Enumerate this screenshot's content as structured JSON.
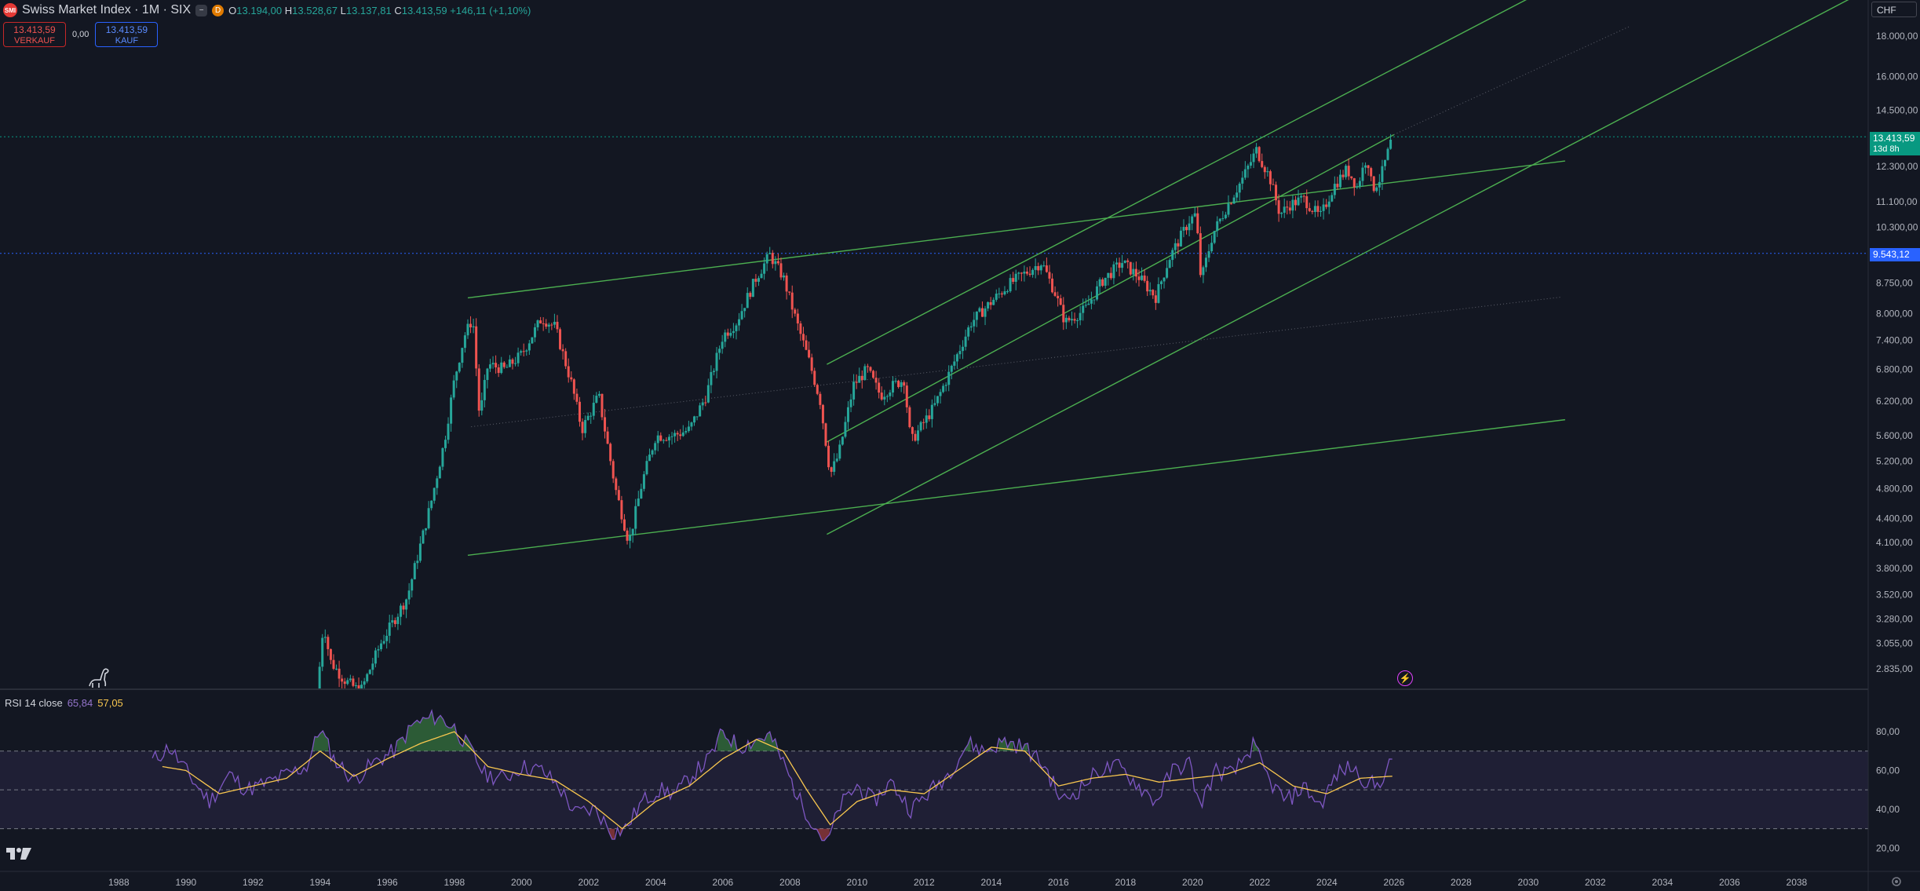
{
  "header": {
    "symbol_title": "Swiss Market Index · 1M · SIX",
    "logo_text": "SMI",
    "flag_minus": "−",
    "flag_d": "D",
    "o_label": "O",
    "o_value": "13.194,00",
    "h_label": "H",
    "h_value": "13.528,67",
    "l_label": "L",
    "l_value": "13.137,81",
    "c_label": "C",
    "c_value": "13.413,59",
    "change": "+146,11 (+1,10%)"
  },
  "trade": {
    "sell_price": "13.413,59",
    "sell_label": "VERKAUF",
    "spread": "0,00",
    "buy_price": "13.413,59",
    "buy_label": "KAUF"
  },
  "currency": "CHF",
  "price_tags": {
    "last_price": "13.413,59",
    "countdown": "13d 8h",
    "level": "9.543,12"
  },
  "rsi": {
    "label": "RSI 14 close",
    "value": "65,84",
    "ma_value": "57,05"
  },
  "colors": {
    "background": "#131722",
    "up": "#26a69a",
    "down": "#ef5350",
    "trendline": "#4caf50",
    "rsi_line": "#7e57c2",
    "rsi_ma": "#f9c74f",
    "level": "#2962ff"
  },
  "icons": [
    "tradingview-logo-icon",
    "dino-icon",
    "lightning-icon",
    "settings-icon"
  ],
  "chart_data": [
    {
      "type": "candlestick",
      "title": "Swiss Market Index · 1M · SIX",
      "scale": "log",
      "x_range": [
        1987.5,
        2040
      ],
      "y_range": [
        2700,
        20600
      ],
      "x_ticks": [
        "1988",
        "1990",
        "1992",
        "1994",
        "1996",
        "1998",
        "2000",
        "2002",
        "2004",
        "2006",
        "2008",
        "2010",
        "2012",
        "2014",
        "2016",
        "2018",
        "2020",
        "2022",
        "2024",
        "2026",
        "2028",
        "2030",
        "2032",
        "2034",
        "2036",
        "2038"
      ],
      "y_ticks": [
        {
          "v": 18000,
          "label": "18.000,00"
        },
        {
          "v": 16000,
          "label": "16.000,00"
        },
        {
          "v": 14500,
          "label": "14.500,00"
        },
        {
          "v": 12300,
          "label": "12.300,00"
        },
        {
          "v": 11100,
          "label": "11.100,00"
        },
        {
          "v": 10300,
          "label": "10.300,00"
        },
        {
          "v": 8750,
          "label": "8.750,00"
        },
        {
          "v": 8000,
          "label": "8.000,00"
        },
        {
          "v": 7400,
          "label": "7.400,00"
        },
        {
          "v": 6800,
          "label": "6.800,00"
        },
        {
          "v": 6200,
          "label": "6.200,00"
        },
        {
          "v": 5600,
          "label": "5.600,00"
        },
        {
          "v": 5200,
          "label": "5.200,00"
        },
        {
          "v": 4800,
          "label": "4.800,00"
        },
        {
          "v": 4400,
          "label": "4.400,00"
        },
        {
          "v": 4100,
          "label": "4.100,00"
        },
        {
          "v": 3800,
          "label": "3.800,00"
        },
        {
          "v": 3520,
          "label": "3.520,00"
        },
        {
          "v": 3280,
          "label": "3.280,00"
        },
        {
          "v": 3055,
          "label": "3.055,00"
        },
        {
          "v": 2835,
          "label": "2.835,00"
        }
      ],
      "price_path": [
        [
          1993.9,
          2600
        ],
        [
          1994.1,
          3250
        ],
        [
          1994.3,
          2900
        ],
        [
          1994.7,
          2750
        ],
        [
          1995.2,
          2650
        ],
        [
          1995.8,
          3050
        ],
        [
          1996.6,
          3500
        ],
        [
          1997.3,
          4600
        ],
        [
          1997.7,
          5500
        ],
        [
          1998.0,
          6600
        ],
        [
          1998.3,
          7500
        ],
        [
          1998.55,
          7900
        ],
        [
          1998.75,
          5900
        ],
        [
          1999.0,
          6900
        ],
        [
          1999.5,
          6800
        ],
        [
          2000.0,
          7100
        ],
        [
          2000.6,
          7900
        ],
        [
          2001.0,
          7700
        ],
        [
          2001.5,
          6500
        ],
        [
          2001.8,
          5700
        ],
        [
          2002.3,
          6300
        ],
        [
          2002.8,
          4800
        ],
        [
          2003.2,
          4100
        ],
        [
          2003.6,
          4900
        ],
        [
          2004.0,
          5600
        ],
        [
          2004.5,
          5600
        ],
        [
          2005.0,
          5700
        ],
        [
          2005.5,
          6300
        ],
        [
          2006.0,
          7500
        ],
        [
          2006.4,
          7800
        ],
        [
          2007.0,
          8900
        ],
        [
          2007.4,
          9500
        ],
        [
          2007.8,
          8900
        ],
        [
          2008.2,
          7800
        ],
        [
          2008.6,
          6900
        ],
        [
          2008.9,
          6200
        ],
        [
          2009.2,
          5000
        ],
        [
          2009.45,
          5300
        ],
        [
          2009.9,
          6500
        ],
        [
          2010.3,
          6800
        ],
        [
          2010.7,
          6300
        ],
        [
          2011.1,
          6500
        ],
        [
          2011.4,
          6600
        ],
        [
          2011.6,
          5500
        ],
        [
          2011.85,
          5700
        ],
        [
          2012.3,
          6100
        ],
        [
          2012.8,
          6800
        ],
        [
          2013.4,
          7800
        ],
        [
          2013.9,
          8200
        ],
        [
          2014.5,
          8700
        ],
        [
          2015.0,
          9000
        ],
        [
          2015.5,
          9300
        ],
        [
          2015.9,
          8500
        ],
        [
          2016.2,
          7800
        ],
        [
          2016.8,
          8100
        ],
        [
          2017.3,
          8800
        ],
        [
          2017.9,
          9300
        ],
        [
          2018.4,
          8900
        ],
        [
          2018.9,
          8400
        ],
        [
          2019.3,
          9400
        ],
        [
          2019.9,
          10500
        ],
        [
          2020.1,
          10700
        ],
        [
          2020.25,
          8800
        ],
        [
          2020.6,
          10100
        ],
        [
          2021.0,
          10900
        ],
        [
          2021.5,
          11900
        ],
        [
          2021.9,
          12900
        ],
        [
          2022.3,
          11900
        ],
        [
          2022.6,
          10700
        ],
        [
          2022.9,
          11000
        ],
        [
          2023.3,
          11200
        ],
        [
          2023.8,
          10600
        ],
        [
          2024.2,
          11600
        ],
        [
          2024.6,
          12200
        ],
        [
          2024.9,
          11600
        ],
        [
          2025.2,
          12700
        ],
        [
          2025.35,
          11500
        ],
        [
          2025.6,
          11900
        ],
        [
          2025.95,
          13400
        ]
      ],
      "trendlines": [
        {
          "x1": 1998.4,
          "y1": 8380,
          "x2": 2031.1,
          "y2": 12500
        },
        {
          "x1": 1998.4,
          "y1": 3950,
          "x2": 2031.1,
          "y2": 5870
        },
        {
          "x1": 2009.1,
          "y1": 6900,
          "x2": 2036.5,
          "y2": 28000
        },
        {
          "x1": 2009.1,
          "y1": 4200,
          "x2": 2040,
          "y2": 20500
        },
        {
          "x1": 2009.1,
          "y1": 5500,
          "x2": 2026,
          "y2": 13500
        }
      ],
      "horizontal_levels": [
        {
          "value": 13413.59,
          "style": "dotted",
          "color": "#089981"
        },
        {
          "value": 9543.12,
          "style": "dotted",
          "color": "#2962ff"
        }
      ]
    },
    {
      "type": "line",
      "title": "RSI 14 close",
      "y_range": [
        10,
        95
      ],
      "y_ticks": [
        {
          "v": 80,
          "label": "80,00"
        },
        {
          "v": 60,
          "label": "60,00"
        },
        {
          "v": 40,
          "label": "40,00"
        },
        {
          "v": 20,
          "label": "20,00"
        }
      ],
      "bands": {
        "upper": 70,
        "middle": 50,
        "lower": 30
      },
      "series": [
        {
          "name": "RSI",
          "points": [
            [
              1989.0,
              65
            ],
            [
              1989.5,
              72
            ],
            [
              1990.2,
              55
            ],
            [
              1990.7,
              44
            ],
            [
              1991.3,
              58
            ],
            [
              1991.8,
              50
            ],
            [
              1992.5,
              54
            ],
            [
              1993.0,
              58
            ],
            [
              1993.6,
              62
            ],
            [
              1994.0,
              82
            ],
            [
              1994.4,
              66
            ],
            [
              1995.0,
              55
            ],
            [
              1995.6,
              64
            ],
            [
              1996.2,
              70
            ],
            [
              1996.8,
              84
            ],
            [
              1997.5,
              88
            ],
            [
              1998.0,
              82
            ],
            [
              1998.5,
              70
            ],
            [
              1998.9,
              58
            ],
            [
              1999.5,
              56
            ],
            [
              2000.0,
              62
            ],
            [
              2000.6,
              60
            ],
            [
              2001.1,
              52
            ],
            [
              2001.6,
              38
            ],
            [
              2002.2,
              40
            ],
            [
              2002.7,
              28
            ],
            [
              2003.1,
              30
            ],
            [
              2003.6,
              44
            ],
            [
              2004.1,
              50
            ],
            [
              2004.6,
              48
            ],
            [
              2005.1,
              58
            ],
            [
              2005.6,
              66
            ],
            [
              2006.0,
              80
            ],
            [
              2006.5,
              72
            ],
            [
              2007.0,
              76
            ],
            [
              2007.4,
              78
            ],
            [
              2007.8,
              64
            ],
            [
              2008.3,
              44
            ],
            [
              2008.8,
              30
            ],
            [
              2009.1,
              22
            ],
            [
              2009.5,
              42
            ],
            [
              2010.0,
              52
            ],
            [
              2010.5,
              44
            ],
            [
              2011.0,
              54
            ],
            [
              2011.6,
              40
            ],
            [
              2012.1,
              48
            ],
            [
              2012.7,
              58
            ],
            [
              2013.3,
              74
            ],
            [
              2013.8,
              70
            ],
            [
              2014.4,
              75
            ],
            [
              2015.0,
              72
            ],
            [
              2015.6,
              62
            ],
            [
              2016.1,
              44
            ],
            [
              2016.6,
              50
            ],
            [
              2017.2,
              60
            ],
            [
              2017.8,
              62
            ],
            [
              2018.4,
              52
            ],
            [
              2018.9,
              44
            ],
            [
              2019.4,
              60
            ],
            [
              2019.9,
              64
            ],
            [
              2020.2,
              42
            ],
            [
              2020.7,
              60
            ],
            [
              2021.2,
              58
            ],
            [
              2021.8,
              73
            ],
            [
              2022.3,
              54
            ],
            [
              2022.8,
              44
            ],
            [
              2023.3,
              52
            ],
            [
              2023.8,
              42
            ],
            [
              2024.3,
              58
            ],
            [
              2024.7,
              62
            ],
            [
              2025.2,
              54
            ],
            [
              2025.5,
              52
            ],
            [
              2025.95,
              65.84
            ]
          ]
        },
        {
          "name": "RSI MA",
          "points": [
            [
              1989.3,
              62
            ],
            [
              1990.0,
              60
            ],
            [
              1991.0,
              48
            ],
            [
              1992.0,
              52
            ],
            [
              1993.0,
              56
            ],
            [
              1994.0,
              70
            ],
            [
              1995.0,
              57
            ],
            [
              1996.0,
              66
            ],
            [
              1997.0,
              74
            ],
            [
              1998.0,
              80
            ],
            [
              1999.0,
              62
            ],
            [
              2000.0,
              58
            ],
            [
              2001.0,
              55
            ],
            [
              2002.0,
              44
            ],
            [
              2003.0,
              30
            ],
            [
              2004.0,
              44
            ],
            [
              2005.0,
              52
            ],
            [
              2006.0,
              66
            ],
            [
              2007.0,
              76
            ],
            [
              2007.8,
              70
            ],
            [
              2008.5,
              50
            ],
            [
              2009.2,
              32
            ],
            [
              2010.0,
              44
            ],
            [
              2011.0,
              50
            ],
            [
              2012.0,
              48
            ],
            [
              2013.0,
              60
            ],
            [
              2014.0,
              72
            ],
            [
              2015.0,
              70
            ],
            [
              2016.0,
              52
            ],
            [
              2017.0,
              56
            ],
            [
              2018.0,
              58
            ],
            [
              2019.0,
              54
            ],
            [
              2020.0,
              56
            ],
            [
              2021.0,
              58
            ],
            [
              2022.0,
              64
            ],
            [
              2023.0,
              52
            ],
            [
              2024.0,
              48
            ],
            [
              2025.0,
              56
            ],
            [
              2025.95,
              57.05
            ]
          ]
        }
      ]
    }
  ]
}
